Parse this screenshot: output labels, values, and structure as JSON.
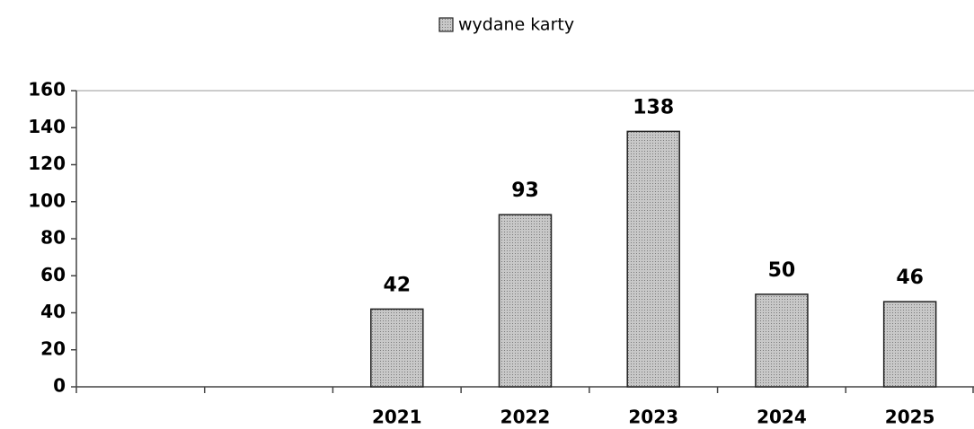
{
  "chart_data": {
    "type": "bar",
    "categories": [
      null,
      null,
      "2021",
      "2022",
      "2023",
      "2024",
      "2025"
    ],
    "series": [
      {
        "name": "wydane karty",
        "color": "#b4b4b4",
        "values": [
          null,
          null,
          42,
          93,
          138,
          50,
          46
        ]
      }
    ],
    "ylim": [
      0,
      160
    ],
    "yticks": [
      0,
      20,
      40,
      60,
      80,
      100,
      120,
      140,
      160
    ],
    "legend": "top"
  }
}
